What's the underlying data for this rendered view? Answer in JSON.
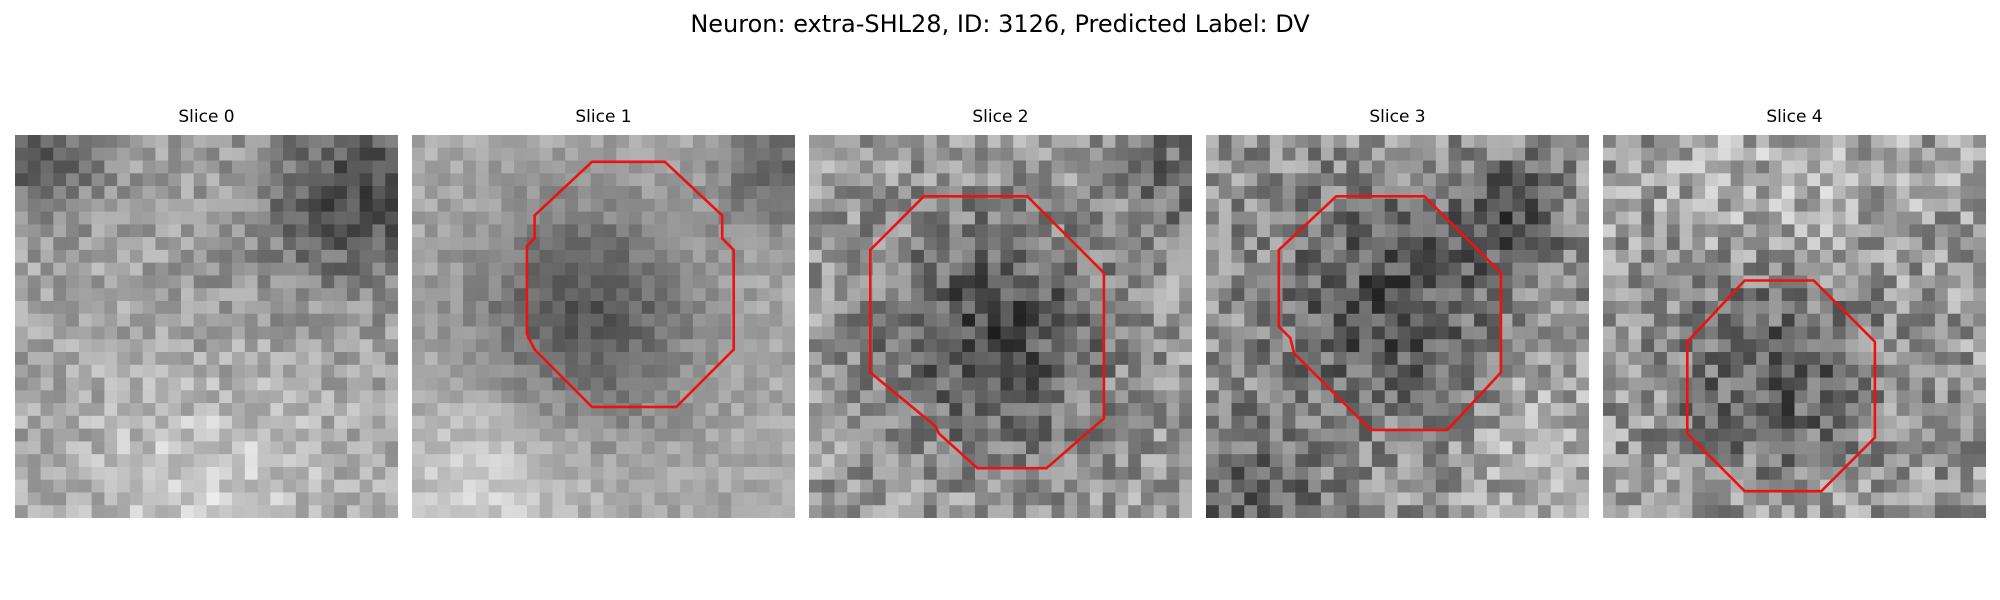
{
  "figure": {
    "title": "Neuron: extra-SHL28, ID: 3126, Predicted Label: DV",
    "contour_color": "#ee1111"
  },
  "slices": [
    {
      "title": "Slice 0"
    },
    {
      "title": "Slice 1"
    },
    {
      "title": "Slice 2"
    },
    {
      "title": "Slice 3"
    },
    {
      "title": "Slice 4"
    }
  ]
}
